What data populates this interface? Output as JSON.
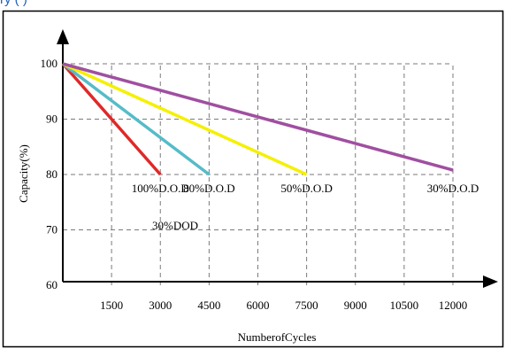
{
  "caption_fragment": "ry                    (     )",
  "chart_data": {
    "type": "line",
    "xlabel": "NumberofCycles",
    "ylabel": "Capacity(%)",
    "xlim": [
      0,
      12000
    ],
    "ylim": [
      60,
      100
    ],
    "x_ticks": [
      "1500",
      "3000",
      "4500",
      "6000",
      "7500",
      "9000",
      "10500",
      "12000"
    ],
    "y_ticks": [
      "60",
      "70",
      "80",
      "90",
      "100"
    ],
    "grid": true,
    "series": [
      {
        "name": "100%D.O.D",
        "color": "#e02828",
        "points": [
          [
            0,
            100
          ],
          [
            3000,
            80
          ]
        ]
      },
      {
        "name": "80%D.O.D",
        "color": "#55bcc8",
        "points": [
          [
            0,
            100
          ],
          [
            4500,
            80
          ]
        ]
      },
      {
        "name": "50%D.O.D",
        "color": "#f5f000",
        "points": [
          [
            0,
            100
          ],
          [
            7500,
            80
          ]
        ]
      },
      {
        "name": "30%D.O.D",
        "color": "#a04fa0",
        "points": [
          [
            0,
            100
          ],
          [
            12000,
            80.8
          ]
        ]
      }
    ],
    "annotations": [
      "30%DOD"
    ]
  }
}
